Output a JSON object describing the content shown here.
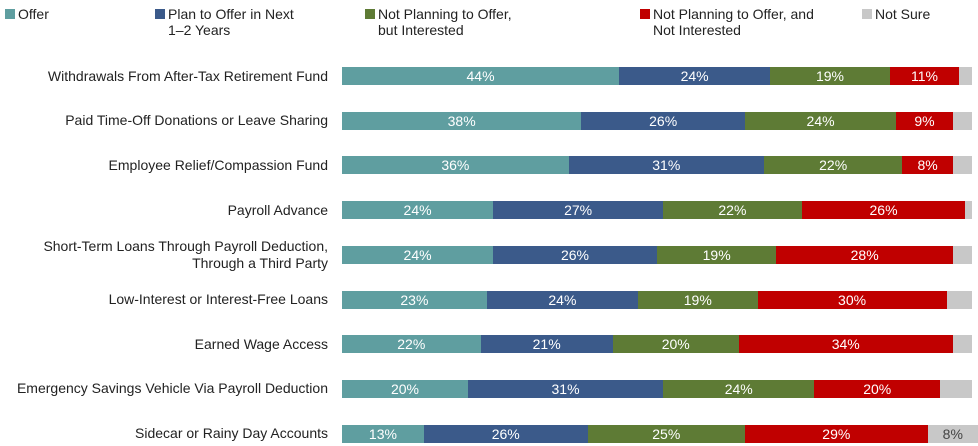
{
  "chart_data": {
    "type": "stacked-bar-horizontal",
    "categories": [
      "Withdrawals From After-Tax Retirement Fund",
      "Paid Time-Off Donations or Leave Sharing",
      "Employee Relief/Compassion Fund",
      "Payroll Advance",
      "Short-Term Loans Through Payroll Deduction, Through a Third Party",
      "Low-Interest or Interest-Free Loans",
      "Earned Wage Access",
      "Emergency Savings Vehicle Via Payroll Deduction",
      "Sidecar or Rainy Day Accounts"
    ],
    "xlim": [
      0,
      101
    ],
    "legend": "top",
    "series": [
      {
        "name": "Offer",
        "color": "#5f9ea0",
        "values": [
          44,
          38,
          36,
          24,
          24,
          23,
          22,
          20,
          13
        ],
        "value_labels": [
          "44%",
          "38%",
          "36%",
          "24%",
          "24%",
          "23%",
          "22%",
          "20%",
          "13%"
        ]
      },
      {
        "name": "Plan to Offer in Next 1–2 Years",
        "color": "#3b5a8a",
        "values": [
          24,
          26,
          31,
          27,
          26,
          24,
          21,
          31,
          26
        ],
        "value_labels": [
          "24%",
          "26%",
          "31%",
          "27%",
          "26%",
          "24%",
          "21%",
          "31%",
          "26%"
        ]
      },
      {
        "name": "Not Planning to Offer, but Interested",
        "color": "#5e7b35",
        "values": [
          19,
          24,
          22,
          22,
          19,
          19,
          20,
          24,
          25
        ],
        "value_labels": [
          "19%",
          "24%",
          "22%",
          "22%",
          "19%",
          "19%",
          "20%",
          "24%",
          "25%"
        ]
      },
      {
        "name": "Not Planning to Offer, and Not Interested",
        "color": "#c00000",
        "values": [
          11,
          9,
          8,
          26,
          28,
          30,
          34,
          20,
          29
        ],
        "value_labels": [
          "11%",
          "9%",
          "8%",
          "26%",
          "28%",
          "30%",
          "34%",
          "20%",
          "29%"
        ]
      },
      {
        "name": "Not Sure",
        "color": "#c8c8c8",
        "values": [
          2,
          3,
          3,
          1,
          3,
          4,
          3,
          5,
          8
        ],
        "value_labels": [
          null,
          null,
          null,
          null,
          null,
          null,
          null,
          null,
          "8%"
        ]
      }
    ]
  }
}
